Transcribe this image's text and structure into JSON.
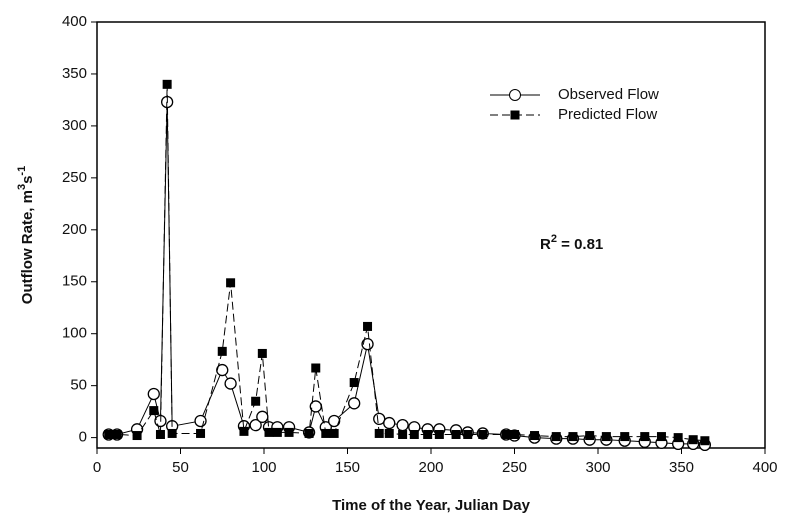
{
  "chart_data": {
    "type": "line",
    "x_label": "Time of the Year, Julian Day",
    "y_label": [
      "Outflow Rate, m",
      "3",
      "s",
      "-1"
    ],
    "annotation": [
      "R",
      "2",
      " = 0.81"
    ],
    "x": [
      7,
      12,
      24,
      34,
      38,
      42,
      45,
      62,
      75,
      80,
      88,
      95,
      99,
      103,
      108,
      115,
      127,
      131,
      137,
      142,
      154,
      162,
      169,
      175,
      183,
      190,
      198,
      205,
      215,
      222,
      231,
      245,
      250,
      262,
      275,
      285,
      295,
      305,
      316,
      328,
      338,
      348,
      357,
      364
    ],
    "series": [
      {
        "name": "Observed Flow",
        "color": "#000000",
        "marker": "circle",
        "dash": false,
        "values": [
          3,
          3,
          8,
          42,
          16,
          323,
          11,
          16,
          65,
          52,
          11,
          12,
          20,
          10,
          10,
          10,
          5,
          30,
          10,
          16,
          33,
          90,
          18,
          14,
          12,
          10,
          8,
          8,
          7,
          5,
          4,
          3,
          2,
          0,
          -1,
          -1,
          -2,
          -2,
          -3,
          -4,
          -5,
          -6,
          -6,
          -7
        ]
      },
      {
        "name": "Predicted  Flow",
        "color": "#000000",
        "marker": "square",
        "dash": true,
        "values": [
          3,
          3,
          2,
          26,
          3,
          340,
          4,
          4,
          83,
          149,
          6,
          35,
          81,
          5,
          5,
          5,
          4,
          67,
          4,
          4,
          53,
          107,
          4,
          4,
          3,
          3,
          3,
          3,
          3,
          3,
          3,
          3,
          3,
          2,
          1,
          1,
          2,
          1,
          1,
          1,
          1,
          0,
          -2,
          -3
        ]
      }
    ],
    "xlim": [
      0,
      400
    ],
    "xticks": [
      0,
      50,
      100,
      150,
      200,
      250,
      300,
      350,
      400
    ],
    "ylim": [
      -10,
      400
    ],
    "yticks": [
      0,
      50,
      100,
      150,
      200,
      250,
      300,
      350,
      400
    ],
    "legend": "top-right"
  }
}
